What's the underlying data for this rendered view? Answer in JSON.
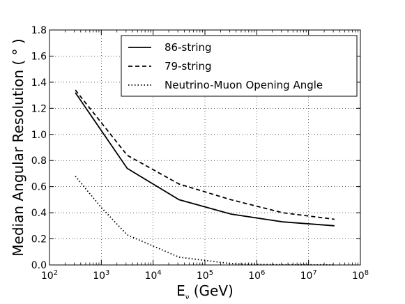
{
  "chart_data": {
    "type": "line",
    "title": "",
    "xlabel": "E",
    "xlabel_sub": "ν",
    "xlabel_unit": " (GeV)",
    "ylabel": "Median Angular Resolution ( ° )",
    "xscale": "log",
    "xlim": [
      100,
      100000000
    ],
    "ylim": [
      0.0,
      1.8
    ],
    "grid": true,
    "legend_position": "upper right",
    "x_ticks": [
      {
        "value": 100,
        "base": "10",
        "exp": "2"
      },
      {
        "value": 1000,
        "base": "10",
        "exp": "3"
      },
      {
        "value": 10000,
        "base": "10",
        "exp": "4"
      },
      {
        "value": 100000,
        "base": "10",
        "exp": "5"
      },
      {
        "value": 1000000,
        "base": "10",
        "exp": "6"
      },
      {
        "value": 10000000,
        "base": "10",
        "exp": "7"
      },
      {
        "value": 100000000,
        "base": "10",
        "exp": "8"
      }
    ],
    "y_ticks": [
      {
        "value": 0.0,
        "label": "0.0"
      },
      {
        "value": 0.2,
        "label": "0.2"
      },
      {
        "value": 0.4,
        "label": "0.4"
      },
      {
        "value": 0.6,
        "label": "0.6"
      },
      {
        "value": 0.8,
        "label": "0.8"
      },
      {
        "value": 1.0,
        "label": "1.0"
      },
      {
        "value": 1.2,
        "label": "1.2"
      },
      {
        "value": 1.4,
        "label": "1.4"
      },
      {
        "value": 1.6,
        "label": "1.6"
      },
      {
        "value": 1.8,
        "label": "1.8"
      }
    ],
    "series": [
      {
        "name": "86-string",
        "style": "solid",
        "color": "#000000",
        "x": [
          316,
          3162,
          31623,
          316228,
          3162278,
          31622777
        ],
        "y": [
          1.32,
          0.74,
          0.5,
          0.39,
          0.33,
          0.3
        ]
      },
      {
        "name": "79-string",
        "style": "dashed",
        "color": "#000000",
        "x": [
          316,
          3162,
          31623,
          316228,
          3162278,
          31622777
        ],
        "y": [
          1.34,
          0.84,
          0.62,
          0.5,
          0.4,
          0.35
        ]
      },
      {
        "name": "Neutrino-Muon Opening Angle",
        "style": "dashdot",
        "color": "#000000",
        "x": [
          316,
          1000,
          3162,
          31623,
          316228,
          1000000,
          3162278,
          31622777
        ],
        "y": [
          0.68,
          0.44,
          0.23,
          0.06,
          0.01,
          0.005,
          0.002,
          0.001
        ]
      }
    ]
  }
}
